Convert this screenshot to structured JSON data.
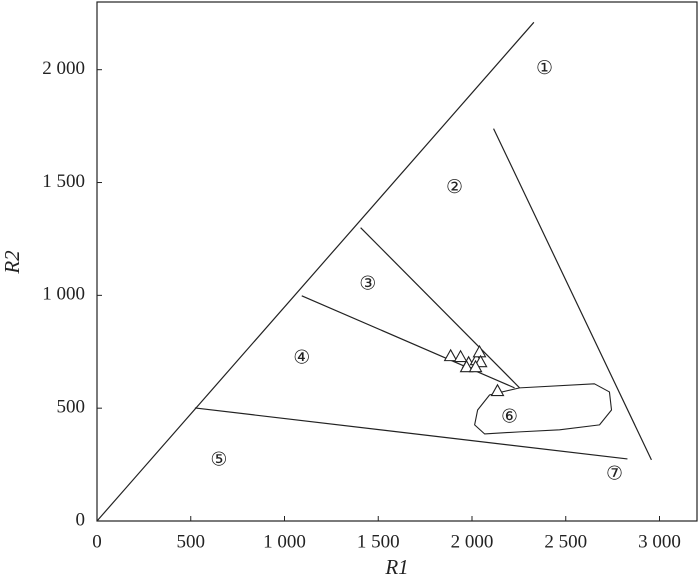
{
  "chart_data": {
    "type": "scatter",
    "x_label": "R1",
    "y_label": "R2",
    "xlim": [
      0,
      3200
    ],
    "ylim": [
      0,
      2300
    ],
    "xticks": [
      0,
      500,
      {
        "value": 1000,
        "label": "1 000"
      },
      {
        "value": 1500,
        "label": "1 500"
      },
      {
        "value": 2000,
        "label": "2 000"
      },
      {
        "value": 2500,
        "label": "2 500"
      },
      {
        "value": 3000,
        "label": "3 000"
      }
    ],
    "yticks": [
      0,
      500,
      {
        "value": 1000,
        "label": "1 000"
      },
      {
        "value": 1500,
        "label": "1 500"
      },
      {
        "value": 2000,
        "label": "2 000"
      }
    ],
    "marker": "triangle",
    "color": "#222222",
    "x": [
      1886,
      1939,
      1982,
      2024,
      2040,
      2046,
      1971,
      2019,
      2136
    ],
    "values": [
      732,
      728,
      701,
      714,
      749,
      705,
      683,
      683,
      577
    ],
    "lines": [
      {
        "x": [
          0,
          2330
        ],
        "y": [
          0,
          2210
        ]
      },
      {
        "x": [
          2115,
          2957
        ],
        "y": [
          1739,
          271
        ]
      },
      {
        "x": [
          1406,
          2254
        ],
        "y": [
          1300,
          590
        ]
      },
      {
        "x": [
          1092,
          2227
        ],
        "y": [
          998,
          590
        ]
      },
      {
        "x": [
          522,
          2829
        ],
        "y": [
          501,
          275
        ]
      }
    ],
    "region": {
      "x": [
        2030,
        2094,
        2254,
        2653,
        2733,
        2744,
        2680,
        2467,
        2254,
        2067,
        2014
      ],
      "y": [
        492,
        559,
        590,
        608,
        572,
        492,
        426,
        404,
        395,
        386,
        426
      ]
    },
    "annotations": [
      {
        "text": "①",
        "x": 2387,
        "y": 2005
      },
      {
        "text": "②",
        "x": 1907,
        "y": 1477
      },
      {
        "text": "③",
        "x": 1444,
        "y": 1051
      },
      {
        "text": "④",
        "x": 1092,
        "y": 723
      },
      {
        "text": "⑤",
        "x": 650,
        "y": 271
      },
      {
        "text": "⑥",
        "x": 2200,
        "y": 461
      },
      {
        "text": "⑦",
        "x": 2760,
        "y": 209
      }
    ]
  }
}
